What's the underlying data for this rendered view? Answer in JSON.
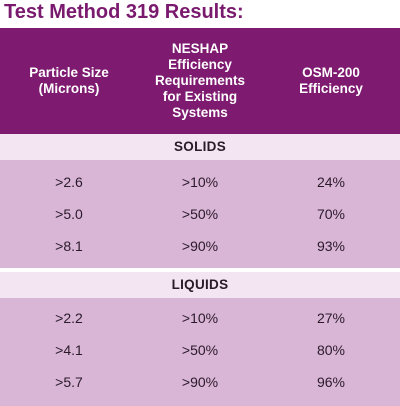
{
  "title": "Test Method 319 Results:",
  "columns": {
    "particle_size": [
      "Particle Size",
      "(Microns)"
    ],
    "neshap": [
      "NESHAP",
      "Efficiency",
      "Requirements",
      "for Existing",
      "Systems"
    ],
    "osm": [
      "OSM-200",
      "Efficiency"
    ]
  },
  "sections": [
    {
      "label": "SOLIDS",
      "rows": [
        {
          "size": ">2.6",
          "neshap": ">10%",
          "osm": "24%"
        },
        {
          "size": ">5.0",
          "neshap": ">50%",
          "osm": "70%"
        },
        {
          "size": ">8.1",
          "neshap": ">90%",
          "osm": "93%"
        }
      ]
    },
    {
      "label": "LIQUIDS",
      "rows": [
        {
          "size": ">2.2",
          "neshap": ">10%",
          "osm": "27%"
        },
        {
          "size": ">4.1",
          "neshap": ">50%",
          "osm": "80%"
        },
        {
          "size": ">5.7",
          "neshap": ">90%",
          "osm": "96%"
        }
      ]
    }
  ],
  "colors": {
    "title": "#7a1a6e",
    "header_bg": "#7e1a70",
    "section_bg": "#f3e6f2",
    "row_bg": "#d9b5d6"
  }
}
